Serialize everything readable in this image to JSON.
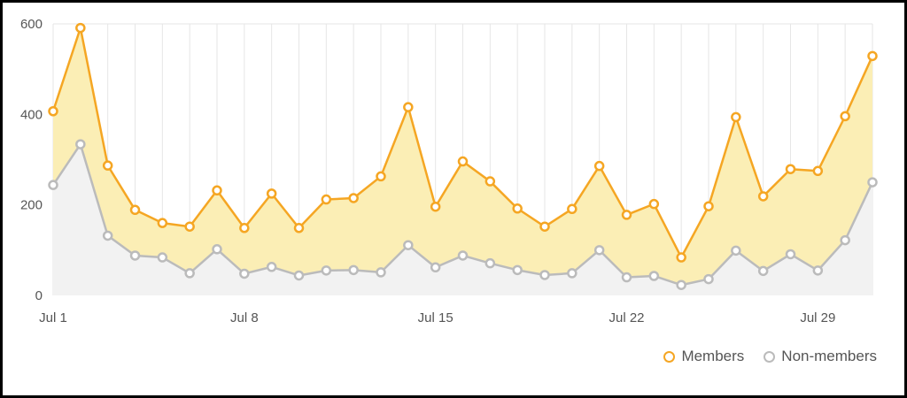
{
  "chart_data": {
    "type": "area",
    "x": [
      "Jul 1",
      "Jul 2",
      "Jul 3",
      "Jul 4",
      "Jul 5",
      "Jul 6",
      "Jul 7",
      "Jul 8",
      "Jul 9",
      "Jul 10",
      "Jul 11",
      "Jul 12",
      "Jul 13",
      "Jul 14",
      "Jul 15",
      "Jul 16",
      "Jul 17",
      "Jul 18",
      "Jul 19",
      "Jul 20",
      "Jul 21",
      "Jul 22",
      "Jul 23",
      "Jul 24",
      "Jul 25",
      "Jul 26",
      "Jul 27",
      "Jul 28",
      "Jul 29",
      "Jul 30",
      "Jul 31"
    ],
    "x_tick_labels": [
      {
        "index": 0,
        "label": "Jul 1"
      },
      {
        "index": 7,
        "label": "Jul 8"
      },
      {
        "index": 14,
        "label": "Jul 15"
      },
      {
        "index": 21,
        "label": "Jul 22"
      },
      {
        "index": 28,
        "label": "Jul 29"
      }
    ],
    "y_ticks": [
      0,
      200,
      400,
      600
    ],
    "ylim": [
      0,
      600
    ],
    "grid": "vertical gridlines at every day",
    "legend_position": "bottom-right",
    "series": [
      {
        "name": "Members",
        "color": "#f5a623",
        "fill": "#fbeeb5",
        "values": [
          407,
          591,
          287,
          189,
          160,
          152,
          232,
          149,
          225,
          149,
          212,
          215,
          263,
          416,
          196,
          296,
          252,
          192,
          152,
          191,
          286,
          178,
          202,
          84,
          197,
          394,
          219,
          279,
          275,
          396,
          529
        ]
      },
      {
        "name": "Non-members",
        "color": "#bbbbbb",
        "fill": "#f2f2f2",
        "values": [
          244,
          334,
          132,
          88,
          84,
          49,
          102,
          48,
          63,
          44,
          55,
          56,
          51,
          111,
          62,
          88,
          71,
          56,
          45,
          49,
          100,
          40,
          43,
          23,
          36,
          99,
          54,
          91,
          55,
          122,
          250
        ]
      }
    ]
  }
}
